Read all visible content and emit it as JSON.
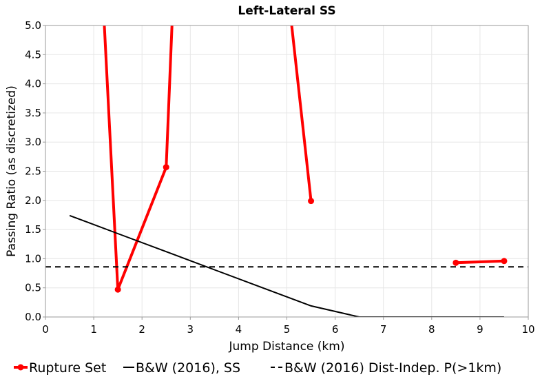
{
  "chart_data": {
    "type": "line",
    "title": "Left-Lateral SS",
    "xlabel": "Jump Distance (km)",
    "ylabel": "Passing Ratio (as discretized)",
    "xlim": [
      0,
      10
    ],
    "ylim": [
      0,
      5
    ],
    "x_ticks": [
      "0",
      "1",
      "2",
      "3",
      "4",
      "5",
      "6",
      "7",
      "8",
      "9",
      "10"
    ],
    "y_ticks": [
      "0.0",
      "0.5",
      "1.0",
      "1.5",
      "2.0",
      "2.5",
      "3.0",
      "3.5",
      "4.0",
      "4.5",
      "5.0"
    ],
    "grid": true,
    "legend_position": "bottom",
    "series": [
      {
        "name": "Rupture Set",
        "color": "#ff0000",
        "style": "solid-markers",
        "segments": [
          [
            [
              1.22,
              5.0
            ],
            [
              1.5,
              0.47
            ],
            [
              2.5,
              2.57
            ],
            [
              2.62,
              5.0
            ]
          ],
          [
            [
              5.1,
              5.0
            ],
            [
              5.5,
              1.99
            ]
          ],
          [
            [
              8.5,
              0.93
            ],
            [
              9.5,
              0.96
            ]
          ]
        ],
        "markers": [
          [
            1.5,
            0.47
          ],
          [
            2.5,
            2.57
          ],
          [
            5.5,
            1.99
          ],
          [
            8.5,
            0.93
          ],
          [
            9.5,
            0.96
          ]
        ]
      },
      {
        "name": "B&W (2016), SS",
        "color": "#000000",
        "style": "solid",
        "points": [
          [
            0.5,
            1.74
          ],
          [
            1.5,
            1.43
          ],
          [
            2.5,
            1.12
          ],
          [
            3.5,
            0.81
          ],
          [
            4.5,
            0.5
          ],
          [
            5.5,
            0.19
          ],
          [
            6.5,
            0.0
          ],
          [
            7.5,
            0.0
          ],
          [
            8.5,
            0.0
          ],
          [
            9.5,
            0.0
          ]
        ]
      },
      {
        "name": "B&W (2016) Dist-Indep. P(>1km)",
        "color": "#000000",
        "style": "dashed",
        "points": [
          [
            0,
            0.86
          ],
          [
            10,
            0.86
          ]
        ]
      }
    ]
  }
}
